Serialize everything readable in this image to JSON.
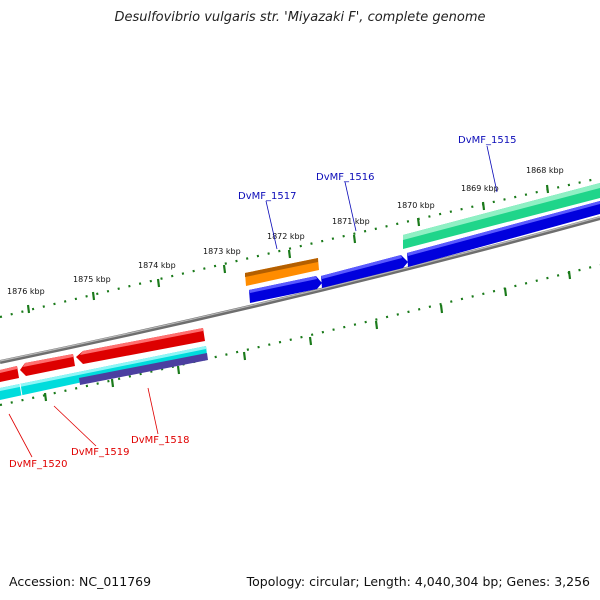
{
  "title": "Desulfovibrio vulgaris str. 'Miyazaki F', complete genome",
  "footer": {
    "accession": "Accession: NC_011769",
    "summary": "Topology: circular; Length: 4,040,304 bp; Genes: 3,256"
  },
  "ruler_labels": [
    "1876 kbp",
    "1875 kbp",
    "1874 kbp",
    "1873 kbp",
    "1872 kbp",
    "1871 kbp",
    "1870 kbp",
    "1869 kbp",
    "1868 kbp"
  ],
  "genes": {
    "top": [
      {
        "label": "DvMF_1517",
        "color": "#0b0bb8"
      },
      {
        "label": "DvMF_1516",
        "color": "#0b0bb8"
      },
      {
        "label": "DvMF_1515",
        "color": "#0b0bb8"
      }
    ],
    "bottom": [
      {
        "label": "DvMF_1518",
        "color": "#e00000"
      },
      {
        "label": "DvMF_1519",
        "color": "#e00000"
      },
      {
        "label": "DvMF_1520",
        "color": "#e00000"
      }
    ]
  },
  "colors": {
    "forward_cds": "#0000dd",
    "reverse_cds": "#dd0000",
    "orange_feature": "#ff8c00",
    "green_feature": "#1fd58a",
    "cyan_feature": "#00dcdc",
    "purple_feature": "#4b3fa0",
    "backbone": "#808080",
    "ticks": "#1a7a1a"
  }
}
